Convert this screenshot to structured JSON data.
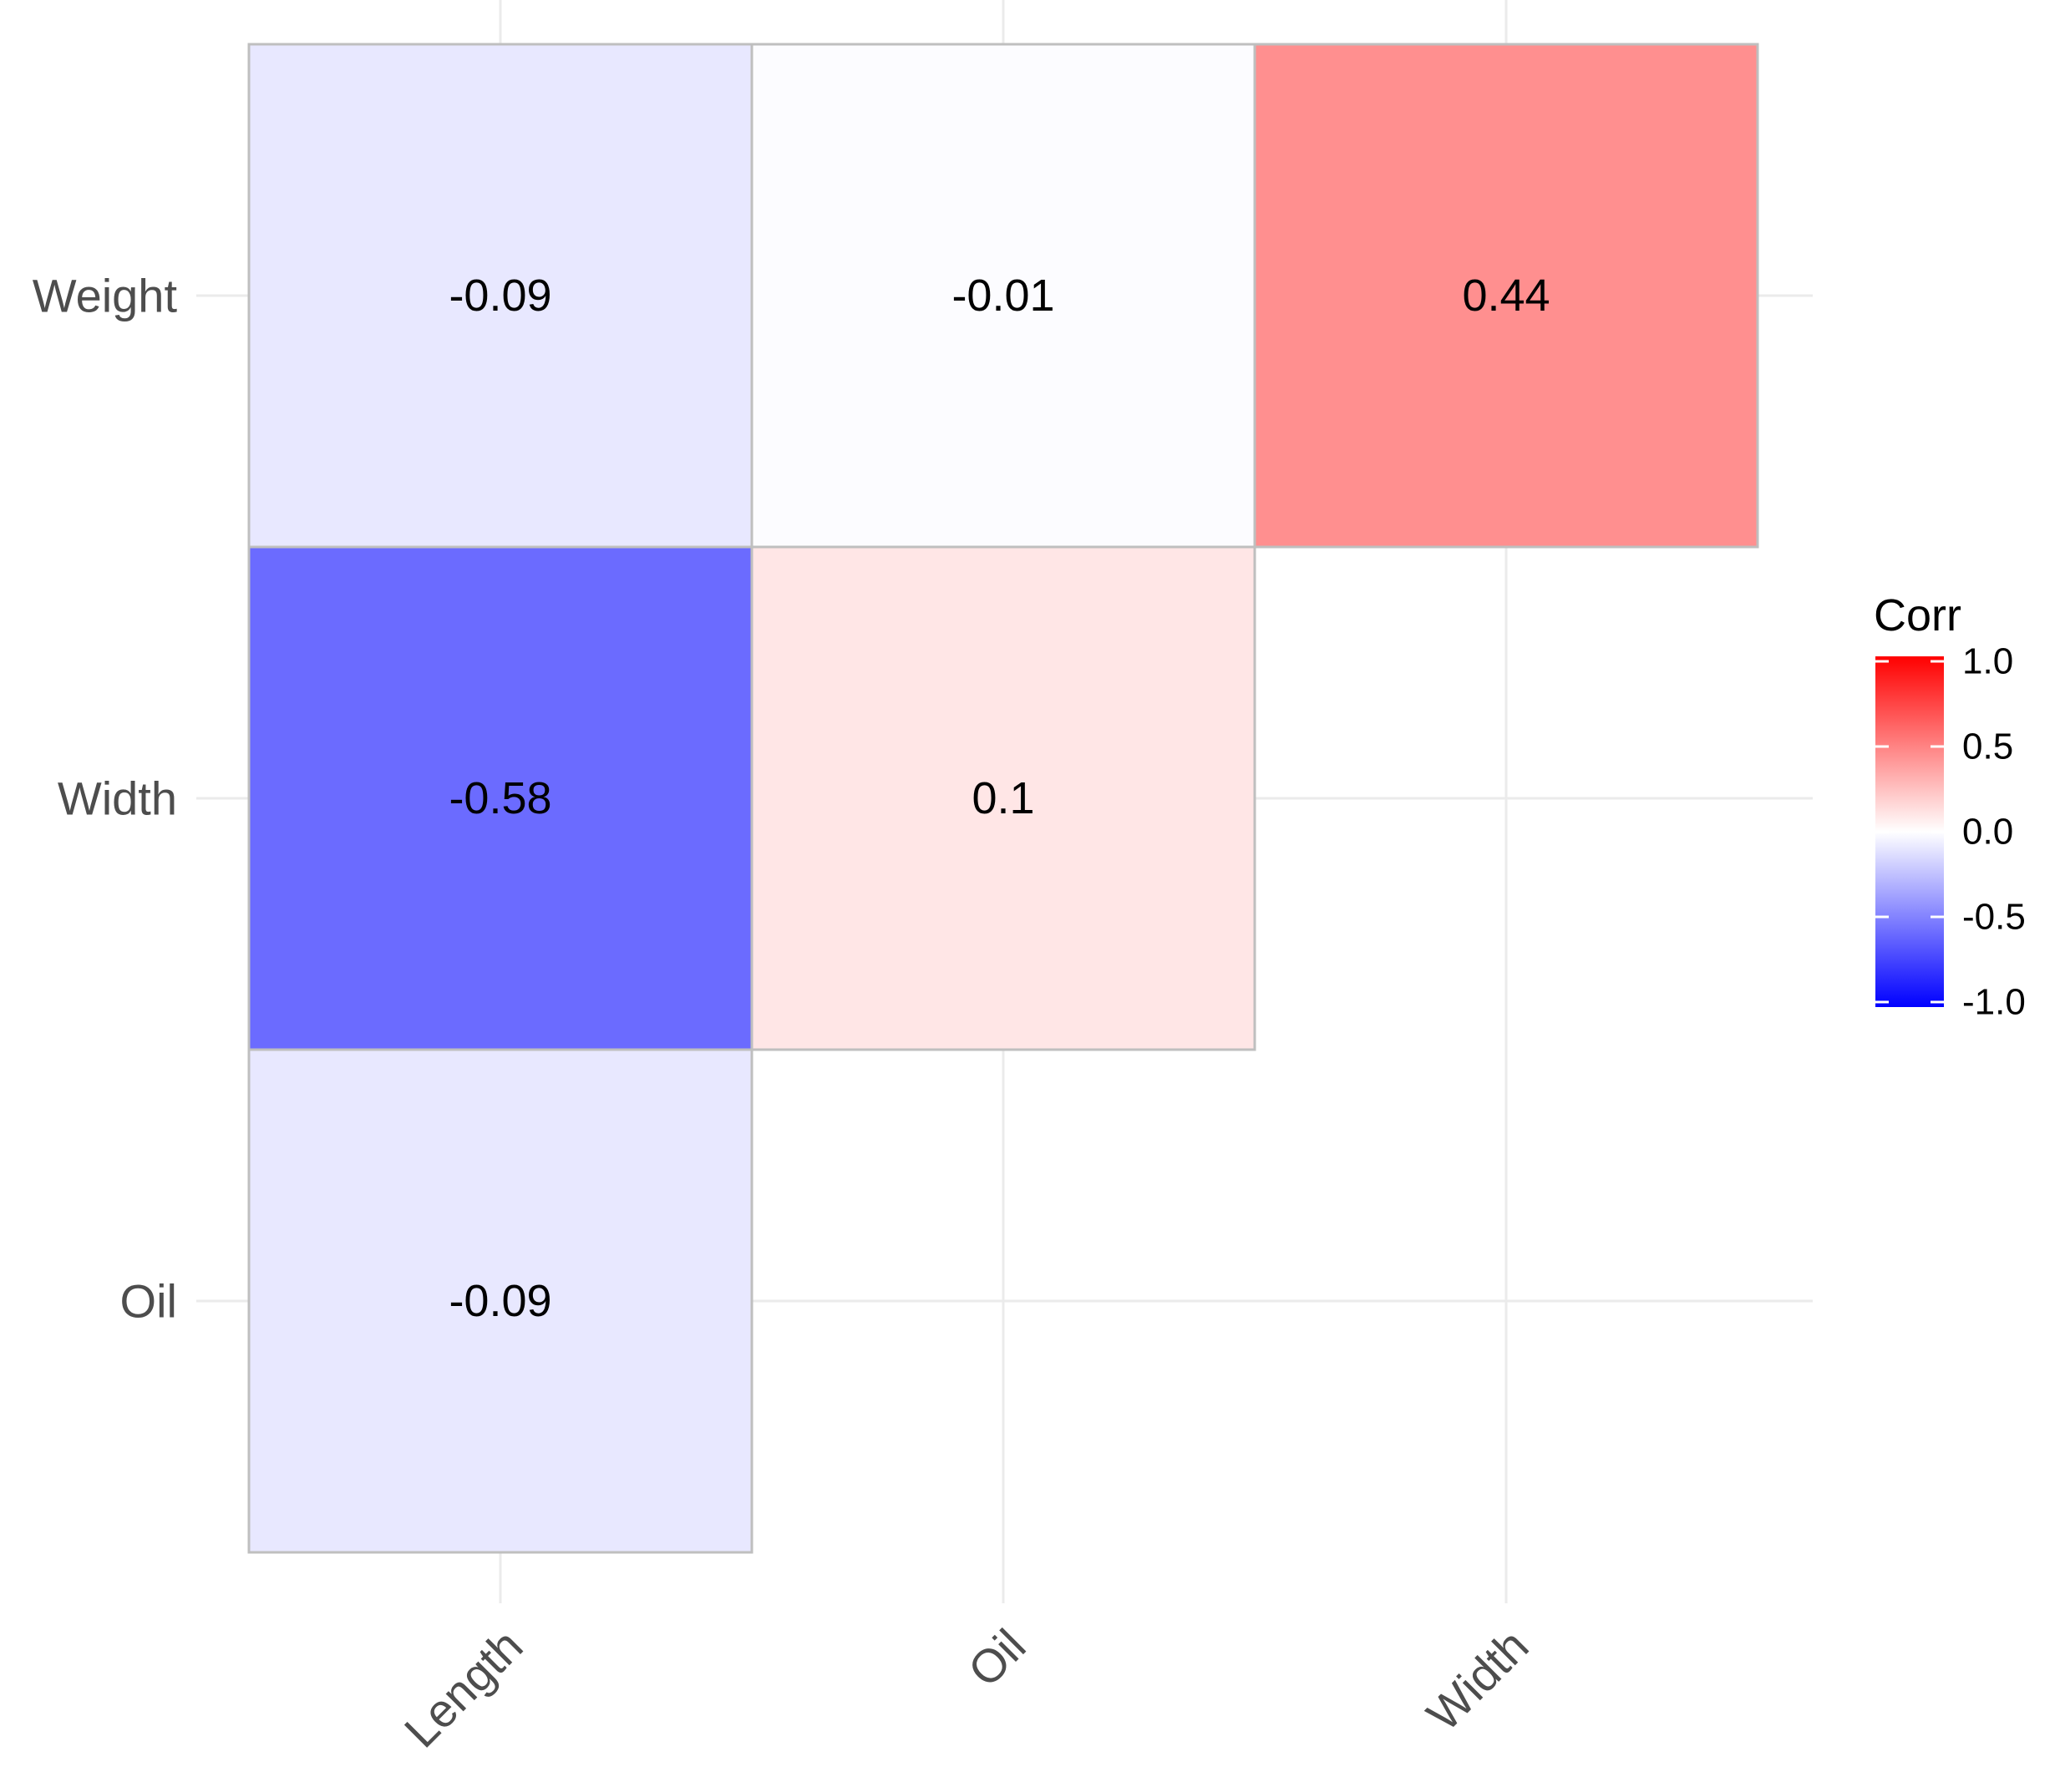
{
  "chart_data": {
    "type": "heatmap",
    "title": "",
    "xlabel": "",
    "ylabel": "",
    "x_categories": [
      "Length",
      "Oil",
      "Width"
    ],
    "y_categories": [
      "Oil",
      "Width",
      "Weight"
    ],
    "cells": [
      {
        "x": "Length",
        "y": "Weight",
        "value": -0.09,
        "label": "-0.09"
      },
      {
        "x": "Oil",
        "y": "Weight",
        "value": -0.01,
        "label": "-0.01"
      },
      {
        "x": "Width",
        "y": "Weight",
        "value": 0.44,
        "label": "0.44"
      },
      {
        "x": "Length",
        "y": "Width",
        "value": -0.58,
        "label": "-0.58"
      },
      {
        "x": "Oil",
        "y": "Width",
        "value": 0.1,
        "label": "0.1"
      },
      {
        "x": "Length",
        "y": "Oil",
        "value": -0.09,
        "label": "-0.09"
      }
    ],
    "grid": true,
    "legend": {
      "title": "Corr",
      "position": "right",
      "range": [
        -1.0,
        1.0
      ],
      "ticks": [
        1.0,
        0.5,
        0.0,
        -0.5,
        -1.0
      ],
      "tick_labels": [
        "1.0",
        "0.5",
        "0.0",
        "-0.5",
        "-1.0"
      ]
    },
    "colors": {
      "low": "#0000ff",
      "mid": "#ffffff",
      "high": "#ff0000",
      "gridline": "#ebebeb",
      "cell_border": "#bfbfbf"
    }
  }
}
